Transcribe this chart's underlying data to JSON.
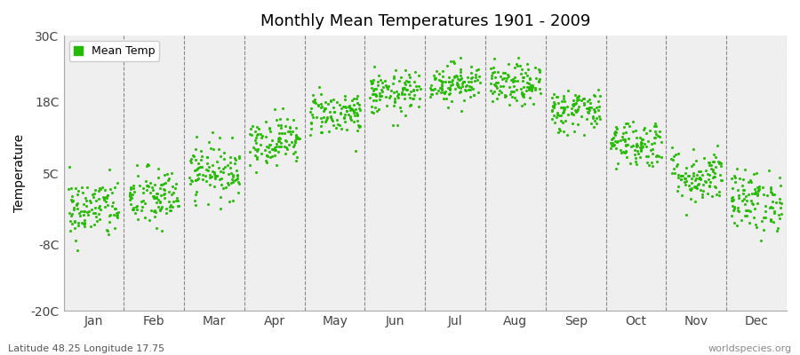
{
  "title": "Monthly Mean Temperatures 1901 - 2009",
  "ylabel": "Temperature",
  "subtitle_left": "Latitude 48.25 Longitude 17.75",
  "subtitle_right": "worldspecies.org",
  "legend_label": "Mean Temp",
  "dot_color": "#22bb00",
  "background_color": "#ffffff",
  "plot_bg_color": "#efefef",
  "ylim": [
    -20,
    30
  ],
  "yticks": [
    -20,
    -8,
    5,
    18,
    30
  ],
  "ytick_labels": [
    "-20C",
    "-8C",
    "5C",
    "18C",
    "30C"
  ],
  "months": [
    "Jan",
    "Feb",
    "Mar",
    "Apr",
    "May",
    "Jun",
    "Jul",
    "Aug",
    "Sep",
    "Oct",
    "Nov",
    "Dec"
  ],
  "month_means": [
    -1.5,
    0.5,
    5.5,
    11.0,
    16.0,
    19.5,
    21.5,
    21.0,
    16.5,
    10.5,
    4.5,
    0.0
  ],
  "month_stds": [
    2.8,
    2.8,
    2.5,
    2.2,
    2.0,
    2.0,
    1.8,
    1.9,
    2.0,
    2.2,
    2.5,
    2.8
  ],
  "n_years": 109,
  "seed": 42
}
